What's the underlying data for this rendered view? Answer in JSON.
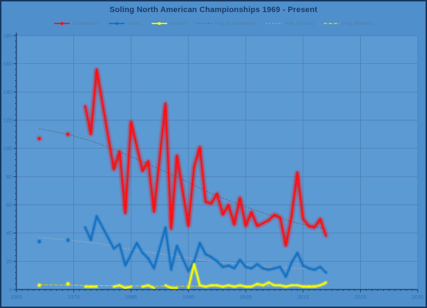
{
  "window": {
    "title": "Soling North American Championships 1969 - Present"
  },
  "chart_data": {
    "type": "line",
    "title": "Soling North American Championships 1969 - Present",
    "xlabel": "",
    "ylabel": "",
    "grid": true,
    "legend_position": "top",
    "x_axis": {
      "min": 1965,
      "max": 2035,
      "tick_step": 10,
      "minor_step": 1,
      "tick_labels": [
        "1965",
        "1975",
        "1985",
        "1995",
        "2005",
        "2015",
        "2025",
        "2035"
      ]
    },
    "y_axis": {
      "min": 0,
      "max": 180,
      "tick_step": 20,
      "minor_step": 4,
      "tick_labels": [
        "0",
        "20",
        "40",
        "60",
        "80",
        "100",
        "120",
        "140",
        "160",
        "180"
      ]
    },
    "series": [
      {
        "name": "Competitors",
        "color": "#ff0d0d",
        "style": "solid",
        "trend": false,
        "isolated_points": [
          [
            1969,
            107
          ],
          [
            1974,
            110
          ]
        ],
        "segments": [
          [
            [
              1977,
              130
            ],
            [
              1978,
              110
            ],
            [
              1979,
              156
            ],
            [
              1982,
              85
            ],
            [
              1983,
              98
            ],
            [
              1984,
              54
            ],
            [
              1985,
              119
            ],
            [
              1987,
              84
            ],
            [
              1988,
              91
            ],
            [
              1989,
              55
            ],
            [
              1991,
              132
            ],
            [
              1992,
              43
            ],
            [
              1993,
              95
            ],
            [
              1995,
              45
            ],
            [
              1996,
              87
            ],
            [
              1997,
              101
            ],
            [
              1998,
              62
            ],
            [
              1999,
              61
            ],
            [
              2000,
              68
            ],
            [
              2001,
              53
            ],
            [
              2002,
              60
            ],
            [
              2003,
              46
            ],
            [
              2004,
              65
            ],
            [
              2005,
              45
            ],
            [
              2006,
              55
            ],
            [
              2007,
              45
            ],
            [
              2008,
              47
            ],
            [
              2009,
              49
            ],
            [
              2010,
              53
            ],
            [
              2011,
              51
            ],
            [
              2012,
              31
            ],
            [
              2013,
              52
            ],
            [
              2014,
              83
            ],
            [
              2015,
              50
            ],
            [
              2016,
              45
            ],
            [
              2017,
              44
            ],
            [
              2018,
              50
            ],
            [
              2019,
              38
            ]
          ]
        ]
      },
      {
        "name": "Yachts",
        "color": "#1570c0",
        "style": "solid",
        "trend": false,
        "isolated_points": [
          [
            1969,
            34
          ],
          [
            1974,
            35
          ]
        ],
        "segments": [
          [
            [
              1977,
              44
            ],
            [
              1978,
              35
            ],
            [
              1979,
              52
            ],
            [
              1982,
              29
            ],
            [
              1983,
              32
            ],
            [
              1984,
              17
            ],
            [
              1986,
              33
            ],
            [
              1987,
              26
            ],
            [
              1988,
              22
            ],
            [
              1989,
              15
            ],
            [
              1991,
              44
            ],
            [
              1992,
              14
            ],
            [
              1993,
              31
            ],
            [
              1995,
              13
            ],
            [
              1996,
              20
            ],
            [
              1997,
              33
            ],
            [
              1998,
              25
            ],
            [
              1999,
              23
            ],
            [
              2000,
              20
            ],
            [
              2001,
              16
            ],
            [
              2002,
              17
            ],
            [
              2003,
              15
            ],
            [
              2004,
              21
            ],
            [
              2005,
              16
            ],
            [
              2006,
              15
            ],
            [
              2007,
              18
            ],
            [
              2008,
              15
            ],
            [
              2009,
              14
            ],
            [
              2010,
              15
            ],
            [
              2011,
              16
            ],
            [
              2012,
              9
            ],
            [
              2013,
              19
            ],
            [
              2014,
              26
            ],
            [
              2015,
              17
            ],
            [
              2016,
              15
            ],
            [
              2017,
              14
            ],
            [
              2018,
              16
            ],
            [
              2019,
              12
            ]
          ]
        ]
      },
      {
        "name": "Nations",
        "color": "#fdfd00",
        "style": "solid",
        "trend": false,
        "isolated_points": [
          [
            1969,
            3
          ],
          [
            1974,
            4
          ]
        ],
        "segments": [
          [
            [
              1977,
              2
            ],
            [
              1978,
              2
            ],
            [
              1979,
              2
            ]
          ],
          [
            [
              1982,
              2
            ],
            [
              1983,
              3
            ],
            [
              1984,
              1
            ],
            [
              1985,
              2
            ]
          ],
          [
            [
              1987,
              2
            ],
            [
              1988,
              3
            ],
            [
              1989,
              1
            ]
          ],
          [
            [
              1991,
              3
            ],
            [
              1992,
              1
            ],
            [
              1993,
              1
            ]
          ],
          [
            [
              1995,
              1
            ],
            [
              1996,
              18
            ],
            [
              1997,
              3
            ],
            [
              1998,
              2
            ],
            [
              1999,
              3
            ],
            [
              2000,
              3
            ],
            [
              2001,
              2
            ],
            [
              2002,
              3
            ],
            [
              2003,
              2
            ],
            [
              2004,
              3
            ],
            [
              2005,
              2
            ],
            [
              2006,
              2
            ],
            [
              2007,
              4
            ],
            [
              2008,
              3
            ],
            [
              2009,
              5
            ],
            [
              2010,
              3
            ],
            [
              2011,
              3
            ],
            [
              2012,
              2
            ],
            [
              2013,
              3
            ],
            [
              2014,
              3
            ],
            [
              2015,
              2
            ],
            [
              2016,
              2
            ],
            [
              2017,
              2
            ],
            [
              2018,
              3
            ],
            [
              2019,
              5
            ]
          ]
        ]
      },
      {
        "name": "Poly. (Competitors)",
        "color": "#5a6e80",
        "style": "dotted",
        "trend": true,
        "isolated_points": [],
        "segments": [
          [
            [
              1969,
              114
            ],
            [
              1974,
              110
            ],
            [
              1979,
              104
            ],
            [
              1984,
              96
            ],
            [
              1989,
              87
            ],
            [
              1994,
              78
            ],
            [
              1999,
              68
            ],
            [
              2004,
              60
            ],
            [
              2009,
              53
            ],
            [
              2014,
              47
            ],
            [
              2019,
              43
            ]
          ]
        ]
      },
      {
        "name": "Poly. (Yachts)",
        "color": "#97abbe",
        "style": "dotted",
        "trend": true,
        "isolated_points": [],
        "segments": [
          [
            [
              1969,
              37
            ],
            [
              1974,
              35
            ],
            [
              1979,
              33
            ],
            [
              1984,
              29
            ],
            [
              1989,
              26
            ],
            [
              1994,
              23
            ],
            [
              1999,
              20
            ],
            [
              2004,
              18
            ],
            [
              2009,
              16
            ],
            [
              2014,
              15
            ],
            [
              2019,
              14
            ]
          ]
        ]
      },
      {
        "name": "Poly. (Nations)",
        "color": "#cfcb2a",
        "style": "dashed",
        "trend": true,
        "isolated_points": [],
        "segments": [
          [
            [
              1969,
              3.4
            ],
            [
              1979,
              2.8
            ],
            [
              1989,
              2.4
            ],
            [
              1999,
              2.3
            ],
            [
              2009,
              2.6
            ],
            [
              2019,
              3.2
            ]
          ]
        ]
      }
    ]
  },
  "colors": {
    "background": "#4e8fcc",
    "plot_background": "#5c9ad4",
    "gridline": "#44719c",
    "axis": "#17375e",
    "tick_label": "#2f6fb5",
    "title": "#1b3a66",
    "legend_text": "#4f80ab",
    "border": "#16365c"
  }
}
